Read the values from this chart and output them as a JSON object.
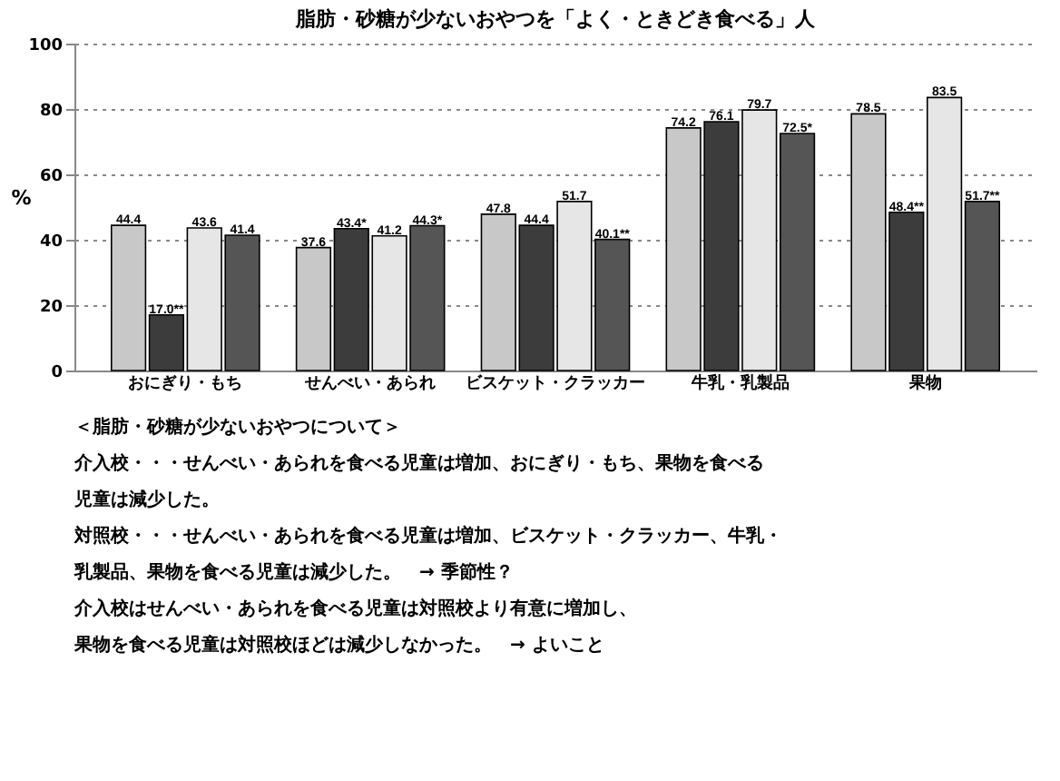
{
  "chart_data": {
    "type": "bar",
    "title": "脂肪・砂糖が少ないおやつを「よく・ときどき食べる」人",
    "ylabel": "%",
    "categories": [
      "おにぎり・もち",
      "せんべい・あられ",
      "ビスケット・クラッカー",
      "牛乳・乳製品",
      "果物"
    ],
    "series": [
      {
        "color": "#c8c8c8",
        "values": [
          44.4,
          37.6,
          47.8,
          74.2,
          78.5
        ],
        "value_labels": [
          "44.4",
          "37.6",
          "47.8",
          "74.2",
          "78.5"
        ]
      },
      {
        "color": "#3c3c3c",
        "values": [
          17.0,
          43.4,
          44.4,
          76.1,
          48.4
        ],
        "value_labels": [
          "17.0**",
          "43.4*",
          "44.4",
          "76.1",
          "48.4**"
        ]
      },
      {
        "color": "#e6e6e6",
        "values": [
          43.6,
          41.2,
          51.7,
          79.7,
          83.5
        ],
        "value_labels": [
          "43.6",
          "41.2",
          "51.7",
          "79.7",
          "83.5"
        ]
      },
      {
        "color": "#555555",
        "values": [
          41.4,
          44.3,
          40.1,
          72.5,
          51.7
        ],
        "value_labels": [
          "41.4",
          "44.3*",
          "40.1**",
          "72.5*",
          "51.7**"
        ]
      }
    ],
    "ylim": [
      0,
      100
    ],
    "yticks": [
      0,
      20,
      40,
      60,
      80,
      100
    ],
    "grid": "y",
    "legend": false,
    "annotations": [
      "＜脂肪・砂糖が少ないおやつについて＞",
      "介入校・・・せんべい・あられを食べる児童は増加、おにぎり・もち、果物を食べる",
      "　　　　　児童は減少した。",
      "対照校・・・せんべい・あられを食べる児童は増加、ビスケット・クラッカー、牛乳・",
      "　　　　　乳製品、果物を食べる児童は減少した。　→ 季節性？",
      "介入校はせんべい・あられを食べる児童は対照校より有意に増加し、",
      "果物を食べる児童は対照校ほどは減少しなかった。　→ よいこと"
    ]
  }
}
